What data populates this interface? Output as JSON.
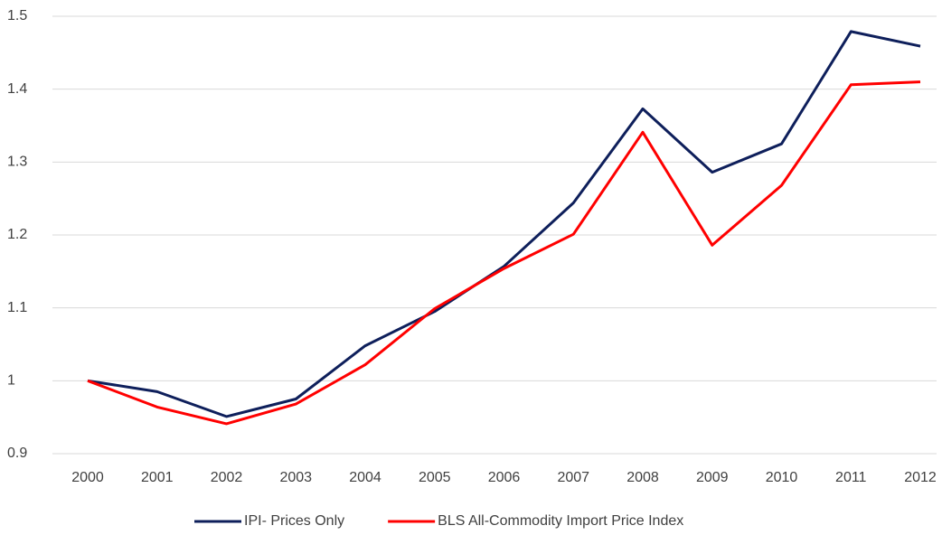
{
  "chart_data": {
    "type": "line",
    "categories": [
      "2000",
      "2001",
      "2002",
      "2003",
      "2004",
      "2005",
      "2006",
      "2007",
      "2008",
      "2009",
      "2010",
      "2011",
      "2012"
    ],
    "series": [
      {
        "name": "IPI- Prices Only",
        "color": "#0e1f5b",
        "values": [
          1.0,
          0.985,
          0.951,
          0.975,
          1.048,
          1.095,
          1.157,
          1.244,
          1.373,
          1.286,
          1.325,
          1.479,
          1.459
        ]
      },
      {
        "name": "BLS All-Commodity Import Price Index",
        "color": "#ff0000",
        "values": [
          1.0,
          0.964,
          0.941,
          0.968,
          1.022,
          1.099,
          1.154,
          1.201,
          1.341,
          1.186,
          1.268,
          1.406,
          1.41
        ]
      }
    ],
    "ylim": [
      0.9,
      1.5
    ],
    "yticks": [
      0.9,
      1,
      1.1,
      1.2,
      1.3,
      1.4,
      1.5
    ],
    "grid": true,
    "legend": "bottom"
  }
}
